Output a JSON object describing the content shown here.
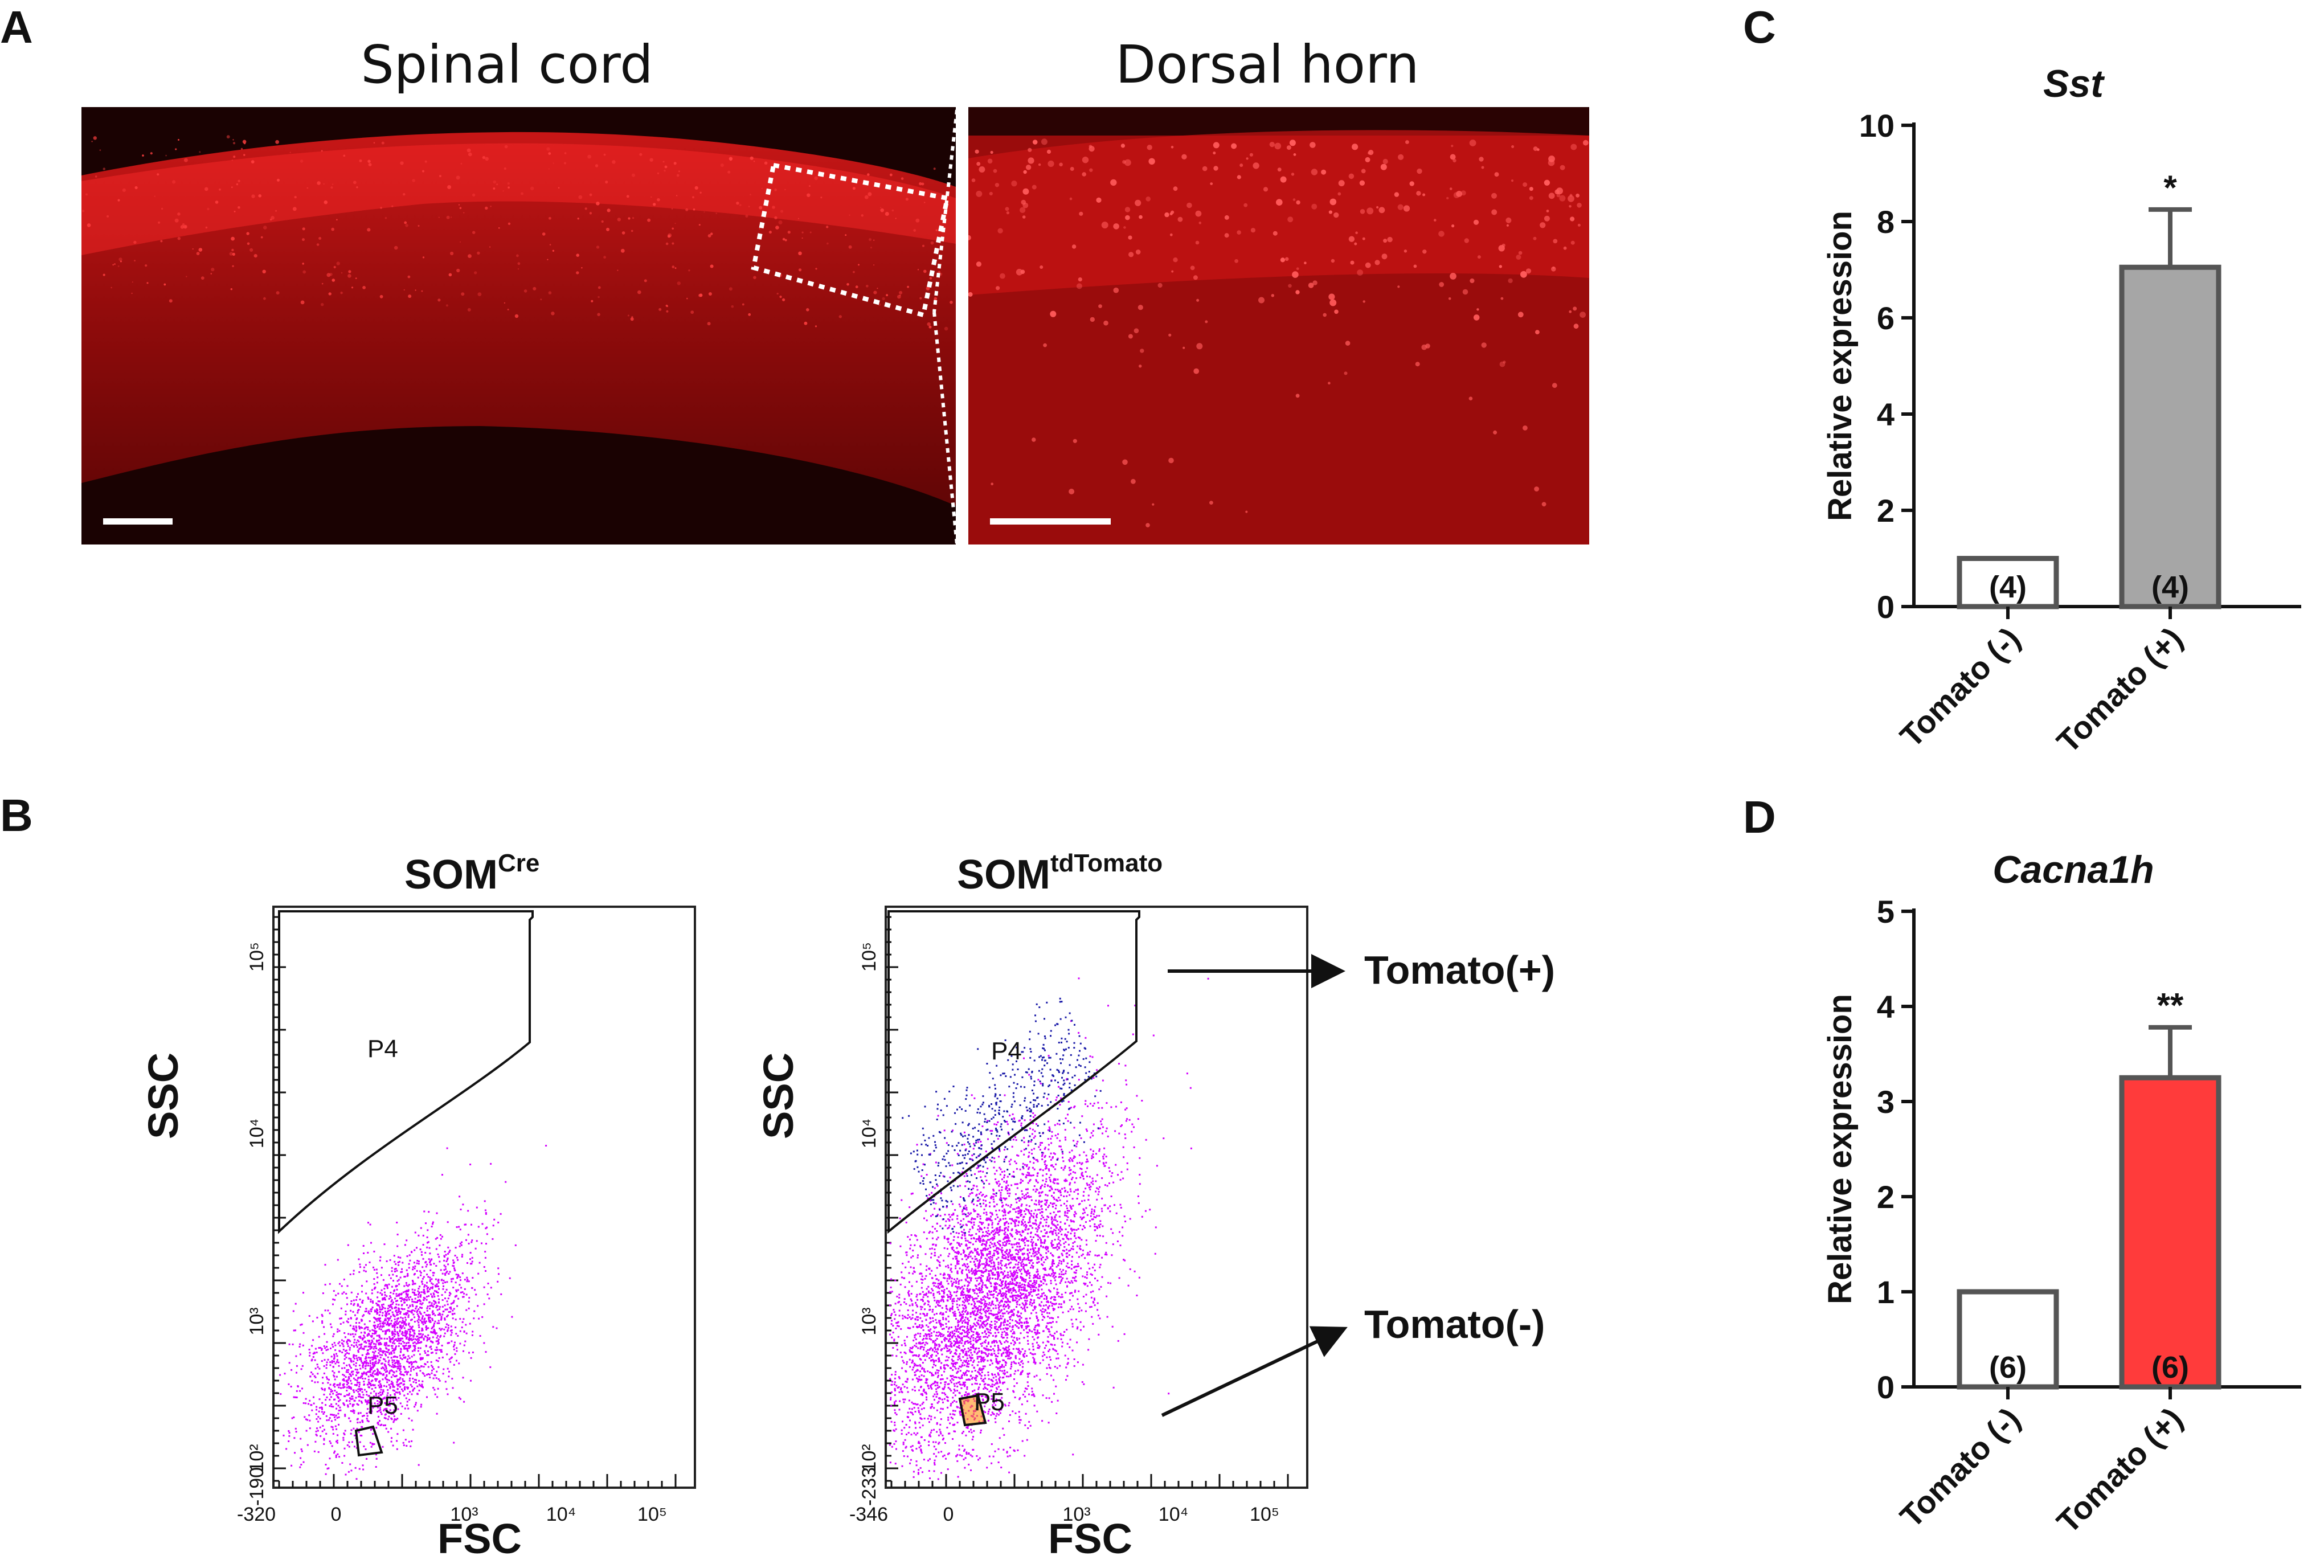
{
  "panel_a": {
    "letter": "A",
    "left_title": "Spinal cord",
    "right_title": "Dorsal horn"
  },
  "panel_b": {
    "letter": "B",
    "plot1": {
      "title_main": "SOM",
      "title_sup": "Cre",
      "gate_top": "P4",
      "gate_bottom": "P5",
      "y_axis": "SSC",
      "x_axis": "FSC",
      "y_ticks": [
        "10⁵",
        "10⁴",
        "10³",
        "10²",
        "-190"
      ],
      "x_ticks": [
        "-320",
        "0",
        "10³",
        "10⁴",
        "10⁵"
      ]
    },
    "plot2": {
      "title_main": "SOM",
      "title_sup": "tdTomato",
      "gate_top": "P4",
      "gate_bottom": "P5",
      "y_axis": "SSC",
      "x_axis": "FSC",
      "y_ticks": [
        "10⁵",
        "10⁴",
        "10³",
        "10²",
        "-233"
      ],
      "x_ticks": [
        "-346",
        "0",
        "10³",
        "10⁴",
        "10⁵"
      ]
    },
    "arrow_top_label": "Tomato(+)",
    "arrow_bottom_label": "Tomato(-)",
    "colors": {
      "population": "#d400ff",
      "gated_p4": "#1a1aa8",
      "gated_p5": "#ff8800"
    }
  },
  "panel_c": {
    "letter": "C"
  },
  "panel_d": {
    "letter": "D"
  },
  "chart_data": [
    {
      "panel": "C",
      "type": "bar",
      "title": "Sst",
      "ylabel": "Relative expression",
      "xlabel": "",
      "categories": [
        "Tomato (-)",
        "Tomato (+)"
      ],
      "values": [
        1.0,
        7.05
      ],
      "errors": [
        0,
        1.2
      ],
      "n_labels": [
        "(4)",
        "(4)"
      ],
      "significance": [
        "",
        "*"
      ],
      "ylim": [
        0,
        10
      ],
      "yticks": [
        0,
        2,
        4,
        6,
        8,
        10
      ],
      "bar_fill": [
        "#ffffff",
        "#a6a6a6"
      ],
      "bar_edge": "#555555"
    },
    {
      "panel": "D",
      "type": "bar",
      "title": "Cacna1h",
      "ylabel": "Relative expression",
      "xlabel": "",
      "categories": [
        "Tomato (-)",
        "Tomato (+)"
      ],
      "values": [
        1.0,
        3.25
      ],
      "errors": [
        0,
        0.53
      ],
      "n_labels": [
        "(6)",
        "(6)"
      ],
      "significance": [
        "",
        "**"
      ],
      "ylim": [
        0,
        5
      ],
      "yticks": [
        0,
        1,
        2,
        3,
        4,
        5
      ],
      "bar_fill": [
        "#ffffff",
        "#ff3b3b"
      ],
      "bar_edge": "#555555"
    }
  ]
}
